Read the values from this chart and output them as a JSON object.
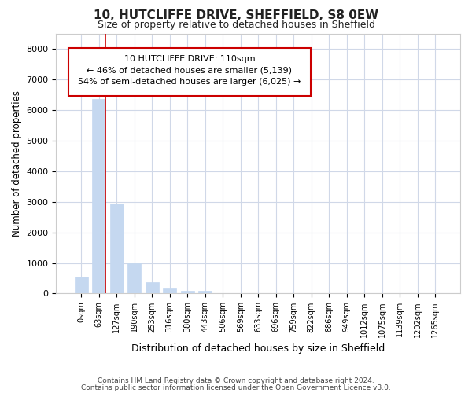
{
  "title1": "10, HUTCLIFFE DRIVE, SHEFFIELD, S8 0EW",
  "title2": "Size of property relative to detached houses in Sheffield",
  "xlabel": "Distribution of detached houses by size in Sheffield",
  "ylabel": "Number of detached properties",
  "categories": [
    "0sqm",
    "63sqm",
    "127sqm",
    "190sqm",
    "253sqm",
    "316sqm",
    "380sqm",
    "443sqm",
    "506sqm",
    "569sqm",
    "633sqm",
    "696sqm",
    "759sqm",
    "822sqm",
    "886sqm",
    "949sqm",
    "1012sqm",
    "1075sqm",
    "1139sqm",
    "1202sqm",
    "1265sqm"
  ],
  "values": [
    550,
    6350,
    2950,
    975,
    375,
    175,
    100,
    80,
    0,
    0,
    0,
    0,
    0,
    0,
    0,
    0,
    0,
    0,
    0,
    0,
    0
  ],
  "bar_color": "#c5d8f0",
  "highlight_color": "#cc0000",
  "highlight_line_index": 1,
  "ylim": [
    0,
    8500
  ],
  "yticks": [
    0,
    1000,
    2000,
    3000,
    4000,
    5000,
    6000,
    7000,
    8000
  ],
  "annotation_line1": "10 HUTCLIFFE DRIVE: 110sqm",
  "annotation_line2": "← 46% of detached houses are smaller (5,139)",
  "annotation_line3": "54% of semi-detached houses are larger (6,025) →",
  "footer1": "Contains HM Land Registry data © Crown copyright and database right 2024.",
  "footer2": "Contains public sector information licensed under the Open Government Licence v3.0.",
  "bg_color": "#ffffff",
  "grid_color": "#d0d8e8",
  "spine_color": "#cccccc"
}
